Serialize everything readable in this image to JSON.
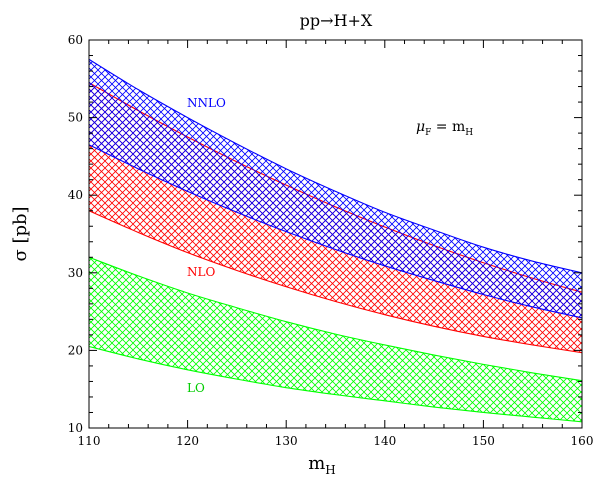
{
  "chart_data": {
    "type": "area",
    "title": "pp→H+X",
    "xlabel": "m",
    "xlabel_sub": "H",
    "ylabel": "σ [pb]",
    "xlim": [
      110,
      160
    ],
    "ylim": [
      10,
      60
    ],
    "x_ticks": [
      110,
      120,
      130,
      140,
      150,
      160
    ],
    "y_ticks": [
      10,
      20,
      30,
      40,
      50,
      60
    ],
    "grid": false,
    "annotation": {
      "main": "μ",
      "sub": "F",
      "rest": " = m",
      "rest_sub": "H"
    },
    "x": [
      110,
      115,
      120,
      125,
      130,
      135,
      140,
      145,
      150,
      155,
      160
    ],
    "series": [
      {
        "name": "NLO",
        "color": "#ff0000",
        "upper": [
          54.5,
          50.9,
          47.5,
          44.3,
          41.3,
          38.5,
          35.9,
          33.5,
          31.3,
          29.3,
          27.5
        ],
        "lower": [
          38.0,
          35.2,
          32.6,
          30.3,
          28.2,
          26.3,
          24.6,
          23.1,
          21.8,
          20.7,
          19.7
        ]
      },
      {
        "name": "NNLO",
        "color": "#0000ff",
        "upper": [
          57.5,
          53.6,
          50.0,
          46.6,
          43.4,
          40.5,
          37.8,
          35.5,
          33.3,
          31.5,
          30.0
        ],
        "lower": [
          46.5,
          43.4,
          40.5,
          37.8,
          35.3,
          33.0,
          30.9,
          29.0,
          27.2,
          25.6,
          24.2
        ]
      },
      {
        "name": "LO",
        "color": "#00ff00",
        "upper": [
          32.0,
          29.6,
          27.4,
          25.5,
          23.7,
          22.1,
          20.7,
          19.4,
          18.2,
          17.1,
          16.1
        ],
        "lower": [
          20.5,
          18.9,
          17.5,
          16.3,
          15.2,
          14.3,
          13.5,
          12.7,
          12.0,
          11.4,
          10.8
        ]
      }
    ]
  }
}
